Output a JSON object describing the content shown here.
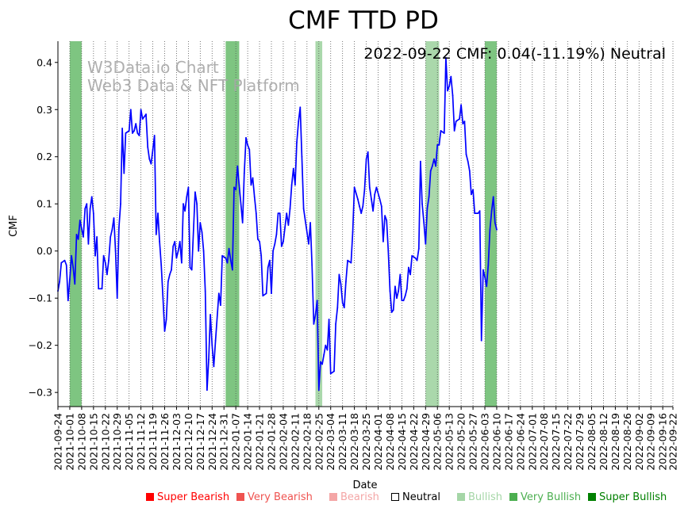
{
  "chart_data": {
    "type": "line",
    "title": "CMF TTD PD",
    "annotation": "2022-09-22 CMF: 0.04(-11.19%) Neutral",
    "watermark_lines": [
      "W3Data.io Chart",
      "Web3 Data & NFT Platform"
    ],
    "xlabel": "Date",
    "ylabel": "CMF",
    "ylim": [
      -0.33,
      0.445
    ],
    "yticks": [
      -0.3,
      -0.2,
      -0.1,
      0.0,
      0.1,
      0.2,
      0.3,
      0.4
    ],
    "ytick_labels": [
      "−0.3",
      "−0.2",
      "−0.1",
      "0.0",
      "0.1",
      "0.2",
      "0.3",
      "0.4"
    ],
    "x_start": "2021-09-24",
    "x_end": "2022-09-22",
    "xtick_labels": [
      "2021-09-24",
      "2021-10-01",
      "2021-10-08",
      "2021-10-15",
      "2021-10-22",
      "2021-10-29",
      "2021-11-05",
      "2021-11-12",
      "2021-11-19",
      "2021-11-26",
      "2021-12-03",
      "2021-12-10",
      "2021-12-17",
      "2021-12-24",
      "2021-12-31",
      "2022-01-07",
      "2022-01-14",
      "2022-01-21",
      "2022-01-28",
      "2022-02-04",
      "2022-02-11",
      "2022-02-18",
      "2022-02-25",
      "2022-03-04",
      "2022-03-11",
      "2022-03-18",
      "2022-03-25",
      "2022-04-01",
      "2022-04-08",
      "2022-04-15",
      "2022-04-22",
      "2022-04-29",
      "2022-05-06",
      "2022-05-13",
      "2022-05-20",
      "2022-05-27",
      "2022-06-03",
      "2022-06-10",
      "2022-06-17",
      "2022-06-24",
      "2022-07-01",
      "2022-07-08",
      "2022-07-15",
      "2022-07-22",
      "2022-07-29",
      "2022-08-05",
      "2022-08-12",
      "2022-08-19",
      "2022-08-26",
      "2022-09-02",
      "2022-09-09",
      "2022-09-16",
      "2022-09-22"
    ],
    "grid": "vertical dotted at each date tick",
    "series": [
      {
        "color": "#0000ff",
        "points": [
          [
            "2021-09-24",
            -0.085
          ],
          [
            "2021-09-25",
            -0.065
          ],
          [
            "2021-09-26",
            -0.025
          ],
          [
            "2021-09-28",
            -0.02
          ],
          [
            "2021-09-29",
            -0.03
          ],
          [
            "2021-09-30",
            -0.105
          ],
          [
            "2021-10-01",
            -0.06
          ],
          [
            "2021-10-02",
            -0.01
          ],
          [
            "2021-10-03",
            -0.035
          ],
          [
            "2021-10-04",
            -0.07
          ],
          [
            "2021-10-05",
            0.035
          ],
          [
            "2021-10-06",
            0.025
          ],
          [
            "2021-10-07",
            0.065
          ],
          [
            "2021-10-09",
            0.03
          ],
          [
            "2021-10-10",
            0.09
          ],
          [
            "2021-10-11",
            0.1
          ],
          [
            "2021-10-12",
            0.015
          ],
          [
            "2021-10-13",
            0.09
          ],
          [
            "2021-10-14",
            0.115
          ],
          [
            "2021-10-15",
            0.08
          ],
          [
            "2021-10-16",
            -0.01
          ],
          [
            "2021-10-17",
            0.03
          ],
          [
            "2021-10-18",
            -0.08
          ],
          [
            "2021-10-20",
            -0.08
          ],
          [
            "2021-10-21",
            -0.01
          ],
          [
            "2021-10-22",
            -0.025
          ],
          [
            "2021-10-23",
            -0.05
          ],
          [
            "2021-10-24",
            -0.02
          ],
          [
            "2021-10-25",
            0.03
          ],
          [
            "2021-10-26",
            0.045
          ],
          [
            "2021-10-27",
            0.07
          ],
          [
            "2021-10-28",
            0.0
          ],
          [
            "2021-10-29",
            -0.1
          ],
          [
            "2021-10-30",
            0.05
          ],
          [
            "2021-10-31",
            0.1
          ],
          [
            "2021-11-01",
            0.26
          ],
          [
            "2021-11-02",
            0.165
          ],
          [
            "2021-11-03",
            0.25
          ],
          [
            "2021-11-05",
            0.255
          ],
          [
            "2021-11-06",
            0.3
          ],
          [
            "2021-11-07",
            0.25
          ],
          [
            "2021-11-08",
            0.255
          ],
          [
            "2021-11-09",
            0.27
          ],
          [
            "2021-11-10",
            0.25
          ],
          [
            "2021-11-11",
            0.245
          ],
          [
            "2021-11-12",
            0.3
          ],
          [
            "2021-11-13",
            0.28
          ],
          [
            "2021-11-15",
            0.29
          ],
          [
            "2021-11-16",
            0.22
          ],
          [
            "2021-11-17",
            0.195
          ],
          [
            "2021-11-18",
            0.185
          ],
          [
            "2021-11-19",
            0.215
          ],
          [
            "2021-11-20",
            0.245
          ],
          [
            "2021-11-21",
            0.035
          ],
          [
            "2021-11-22",
            0.08
          ],
          [
            "2021-11-23",
            0.02
          ],
          [
            "2021-11-24",
            -0.03
          ],
          [
            "2021-11-25",
            -0.1
          ],
          [
            "2021-11-26",
            -0.17
          ],
          [
            "2021-11-27",
            -0.145
          ],
          [
            "2021-11-28",
            -0.065
          ],
          [
            "2021-11-29",
            -0.05
          ],
          [
            "2021-11-30",
            -0.04
          ],
          [
            "2021-12-01",
            0.01
          ],
          [
            "2021-12-02",
            0.02
          ],
          [
            "2021-12-03",
            -0.015
          ],
          [
            "2021-12-04",
            0.0
          ],
          [
            "2021-12-05",
            0.02
          ],
          [
            "2021-12-06",
            -0.025
          ],
          [
            "2021-12-07",
            0.1
          ],
          [
            "2021-12-08",
            0.085
          ],
          [
            "2021-12-09",
            0.115
          ],
          [
            "2021-12-10",
            0.135
          ],
          [
            "2021-12-11",
            -0.035
          ],
          [
            "2021-12-12",
            -0.04
          ],
          [
            "2021-12-14",
            0.125
          ],
          [
            "2021-12-15",
            0.1
          ],
          [
            "2021-12-16",
            0.0
          ],
          [
            "2021-12-17",
            0.06
          ],
          [
            "2021-12-18",
            0.04
          ],
          [
            "2021-12-19",
            0.0
          ],
          [
            "2021-12-20",
            -0.085
          ],
          [
            "2021-12-21",
            -0.295
          ],
          [
            "2021-12-22",
            -0.23
          ],
          [
            "2021-12-23",
            -0.135
          ],
          [
            "2021-12-24",
            -0.2
          ],
          [
            "2021-12-25",
            -0.245
          ],
          [
            "2021-12-26",
            -0.19
          ],
          [
            "2021-12-28",
            -0.09
          ],
          [
            "2021-12-29",
            -0.115
          ],
          [
            "2021-12-30",
            -0.01
          ],
          [
            "2022-01-01",
            -0.015
          ],
          [
            "2022-01-02",
            -0.025
          ],
          [
            "2022-01-03",
            0.005
          ],
          [
            "2022-01-04",
            -0.02
          ],
          [
            "2022-01-05",
            -0.04
          ],
          [
            "2022-01-06",
            0.135
          ],
          [
            "2022-01-07",
            0.13
          ],
          [
            "2022-01-08",
            0.18
          ],
          [
            "2022-01-09",
            0.14
          ],
          [
            "2022-01-11",
            0.06
          ],
          [
            "2022-01-12",
            0.165
          ],
          [
            "2022-01-13",
            0.24
          ],
          [
            "2022-01-14",
            0.225
          ],
          [
            "2022-01-15",
            0.215
          ],
          [
            "2022-01-16",
            0.14
          ],
          [
            "2022-01-17",
            0.155
          ],
          [
            "2022-01-18",
            0.115
          ],
          [
            "2022-01-19",
            0.08
          ],
          [
            "2022-01-20",
            0.025
          ],
          [
            "2022-01-21",
            0.02
          ],
          [
            "2022-01-22",
            -0.01
          ],
          [
            "2022-01-23",
            -0.095
          ],
          [
            "2022-01-25",
            -0.09
          ],
          [
            "2022-01-26",
            -0.035
          ],
          [
            "2022-01-27",
            -0.02
          ],
          [
            "2022-01-28",
            -0.09
          ],
          [
            "2022-01-29",
            0.0
          ],
          [
            "2022-01-30",
            0.015
          ],
          [
            "2022-01-31",
            0.035
          ],
          [
            "2022-02-01",
            0.08
          ],
          [
            "2022-02-02",
            0.08
          ],
          [
            "2022-02-03",
            0.01
          ],
          [
            "2022-02-04",
            0.02
          ],
          [
            "2022-02-05",
            0.05
          ],
          [
            "2022-02-06",
            0.08
          ],
          [
            "2022-02-07",
            0.055
          ],
          [
            "2022-02-08",
            0.09
          ],
          [
            "2022-02-09",
            0.14
          ],
          [
            "2022-02-10",
            0.175
          ],
          [
            "2022-02-11",
            0.14
          ],
          [
            "2022-02-12",
            0.23
          ],
          [
            "2022-02-13",
            0.275
          ],
          [
            "2022-02-14",
            0.305
          ],
          [
            "2022-02-15",
            0.2
          ],
          [
            "2022-02-16",
            0.09
          ],
          [
            "2022-02-17",
            0.065
          ],
          [
            "2022-02-19",
            0.015
          ],
          [
            "2022-02-20",
            0.06
          ],
          [
            "2022-02-21",
            -0.03
          ],
          [
            "2022-02-22",
            -0.155
          ],
          [
            "2022-02-23",
            -0.135
          ],
          [
            "2022-02-24",
            -0.105
          ],
          [
            "2022-02-25",
            -0.295
          ],
          [
            "2022-02-26",
            -0.235
          ],
          [
            "2022-02-27",
            -0.24
          ],
          [
            "2022-02-28",
            -0.22
          ],
          [
            "2022-03-01",
            -0.2
          ],
          [
            "2022-03-02",
            -0.21
          ],
          [
            "2022-03-03",
            -0.145
          ],
          [
            "2022-03-04",
            -0.26
          ],
          [
            "2022-03-06",
            -0.255
          ],
          [
            "2022-03-07",
            -0.155
          ],
          [
            "2022-03-08",
            -0.12
          ],
          [
            "2022-03-09",
            -0.05
          ],
          [
            "2022-03-10",
            -0.07
          ],
          [
            "2022-03-11",
            -0.11
          ],
          [
            "2022-03-12",
            -0.12
          ],
          [
            "2022-03-13",
            -0.065
          ],
          [
            "2022-03-14",
            -0.02
          ],
          [
            "2022-03-16",
            -0.025
          ],
          [
            "2022-03-17",
            0.04
          ],
          [
            "2022-03-18",
            0.135
          ],
          [
            "2022-03-20",
            0.11
          ],
          [
            "2022-03-21",
            0.095
          ],
          [
            "2022-03-22",
            0.08
          ],
          [
            "2022-03-23",
            0.095
          ],
          [
            "2022-03-24",
            0.13
          ],
          [
            "2022-03-25",
            0.195
          ],
          [
            "2022-03-26",
            0.21
          ],
          [
            "2022-03-27",
            0.135
          ],
          [
            "2022-03-28",
            0.11
          ],
          [
            "2022-03-29",
            0.085
          ],
          [
            "2022-03-30",
            0.12
          ],
          [
            "2022-03-31",
            0.135
          ],
          [
            "2022-04-02",
            0.11
          ],
          [
            "2022-04-03",
            0.095
          ],
          [
            "2022-04-04",
            0.02
          ],
          [
            "2022-04-05",
            0.075
          ],
          [
            "2022-04-06",
            0.065
          ],
          [
            "2022-04-07",
            0.0
          ],
          [
            "2022-04-08",
            -0.085
          ],
          [
            "2022-04-09",
            -0.13
          ],
          [
            "2022-04-10",
            -0.125
          ],
          [
            "2022-04-11",
            -0.075
          ],
          [
            "2022-04-12",
            -0.1
          ],
          [
            "2022-04-13",
            -0.085
          ],
          [
            "2022-04-14",
            -0.05
          ],
          [
            "2022-04-15",
            -0.105
          ],
          [
            "2022-04-16",
            -0.105
          ],
          [
            "2022-04-17",
            -0.095
          ],
          [
            "2022-04-18",
            -0.08
          ],
          [
            "2022-04-19",
            -0.035
          ],
          [
            "2022-04-20",
            -0.05
          ],
          [
            "2022-04-21",
            -0.01
          ],
          [
            "2022-04-23",
            -0.015
          ],
          [
            "2022-04-24",
            -0.02
          ],
          [
            "2022-04-25",
            0.005
          ],
          [
            "2022-04-26",
            0.19
          ],
          [
            "2022-04-27",
            0.1
          ],
          [
            "2022-04-28",
            0.06
          ],
          [
            "2022-04-29",
            0.015
          ],
          [
            "2022-04-30",
            0.09
          ],
          [
            "2022-05-01",
            0.115
          ],
          [
            "2022-05-02",
            0.17
          ],
          [
            "2022-05-03",
            0.18
          ],
          [
            "2022-05-04",
            0.195
          ],
          [
            "2022-05-05",
            0.18
          ],
          [
            "2022-05-06",
            0.225
          ],
          [
            "2022-05-07",
            0.225
          ],
          [
            "2022-05-08",
            0.255
          ],
          [
            "2022-05-10",
            0.25
          ],
          [
            "2022-05-11",
            0.41
          ],
          [
            "2022-05-12",
            0.34
          ],
          [
            "2022-05-13",
            0.35
          ],
          [
            "2022-05-14",
            0.37
          ],
          [
            "2022-05-15",
            0.33
          ],
          [
            "2022-05-16",
            0.255
          ],
          [
            "2022-05-17",
            0.275
          ],
          [
            "2022-05-19",
            0.28
          ],
          [
            "2022-05-20",
            0.31
          ],
          [
            "2022-05-21",
            0.27
          ],
          [
            "2022-05-22",
            0.275
          ],
          [
            "2022-05-23",
            0.205
          ],
          [
            "2022-05-24",
            0.19
          ],
          [
            "2022-05-25",
            0.17
          ],
          [
            "2022-05-26",
            0.12
          ],
          [
            "2022-05-27",
            0.13
          ],
          [
            "2022-05-28",
            0.08
          ],
          [
            "2022-05-30",
            0.08
          ],
          [
            "2022-05-31",
            0.085
          ],
          [
            "2022-06-01",
            -0.19
          ],
          [
            "2022-06-02",
            -0.04
          ],
          [
            "2022-06-03",
            -0.055
          ],
          [
            "2022-06-04",
            -0.075
          ],
          [
            "2022-06-05",
            -0.03
          ],
          [
            "2022-06-06",
            0.045
          ],
          [
            "2022-06-07",
            0.085
          ],
          [
            "2022-06-08",
            0.115
          ],
          [
            "2022-06-09",
            0.06
          ],
          [
            "2022-06-10",
            0.045
          ]
        ]
      }
    ],
    "signal_bands": [
      {
        "from": "2021-10-01",
        "to": "2021-10-08",
        "level": "Very Bullish"
      },
      {
        "from": "2022-01-01",
        "to": "2022-01-09",
        "level": "Very Bullish"
      },
      {
        "from": "2022-02-23",
        "to": "2022-02-27",
        "level": "Bullish"
      },
      {
        "from": "2022-04-29",
        "to": "2022-05-07",
        "level": "Bullish"
      },
      {
        "from": "2022-06-03",
        "to": "2022-06-10",
        "level": "Very Bullish"
      }
    ],
    "legend": [
      {
        "label": "Super Bearish",
        "color": "#ff0000"
      },
      {
        "label": "Very Bearish",
        "color": "#ef5350"
      },
      {
        "label": "Bearish",
        "color": "#f4a6a6"
      },
      {
        "label": "Neutral",
        "color": "#000000"
      },
      {
        "label": "Bullish",
        "color": "#a5d6a7"
      },
      {
        "label": "Very Bullish",
        "color": "#4caf50"
      },
      {
        "label": "Super Bullish",
        "color": "#008000"
      }
    ],
    "legend_placement": "bottom"
  }
}
